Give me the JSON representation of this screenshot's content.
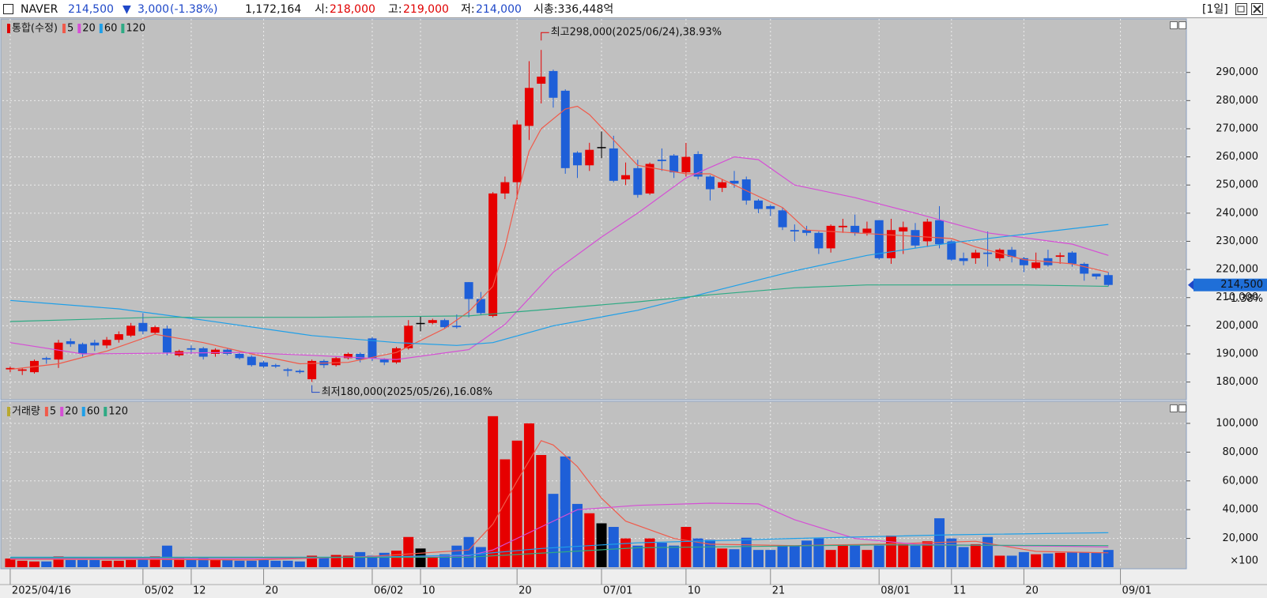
{
  "header": {
    "symbol": "NAVER",
    "price": "214,500",
    "arrow": "▼",
    "change": "3,000",
    "change_pct": "(-1.38%)",
    "volume": "1,172,164",
    "open_label": "시:",
    "open": "218,000",
    "high_label": "고:",
    "high": "219,000",
    "low_label": "저:",
    "low": "214,000",
    "market_cap": "시총:336,448억",
    "period": "[1일]"
  },
  "chart_data": [
    {
      "type": "candlestick",
      "legend_title": "통합(수정)",
      "legend_color": "#e00000",
      "up_color": "#e60000",
      "down_color": "#1e5fd8",
      "flat_color": "#000000",
      "open": [
        184500,
        184000,
        183500,
        188500,
        188000,
        194500,
        193500,
        194000,
        193000,
        195000,
        196500,
        201000,
        197500,
        199000,
        189500,
        192000,
        192000,
        190000,
        191500,
        190000,
        189000,
        187000,
        186000,
        184500,
        184000,
        181000,
        187500,
        186000,
        188500,
        190000,
        195500,
        188000,
        187000,
        192000,
        201000,
        201000,
        202000,
        200000,
        215500,
        209500,
        203500,
        247000,
        251000,
        271000,
        286000,
        290500,
        283500,
        261500,
        257000,
        263500,
        263000,
        252000,
        256000,
        247000,
        259000,
        260500,
        254500,
        261000,
        253000,
        249000,
        251500,
        252000,
        244500,
        242500,
        241000,
        234000,
        234000,
        233000,
        227500,
        235000,
        235500,
        233000,
        237500,
        224000,
        233500,
        234000,
        230000,
        237500,
        230000,
        224000,
        224000,
        226000,
        224000,
        227000,
        224000,
        220500,
        224000,
        224500,
        226000,
        222000,
        218500,
        218000
      ],
      "high": [
        185500,
        185000,
        188000,
        189000,
        195000,
        195500,
        194000,
        195000,
        196000,
        198000,
        201000,
        204500,
        200000,
        200000,
        191500,
        193000,
        192500,
        192000,
        192000,
        190500,
        189500,
        187500,
        186500,
        185000,
        184500,
        188000,
        188000,
        189000,
        190500,
        190500,
        196000,
        188500,
        192500,
        202000,
        203500,
        202500,
        202500,
        204000,
        215500,
        212000,
        247500,
        253000,
        273000,
        294000,
        298000,
        291000,
        284000,
        262000,
        265000,
        269000,
        267500,
        258000,
        259000,
        258000,
        263000,
        261000,
        265000,
        262000,
        253500,
        252000,
        255000,
        253000,
        245000,
        243000,
        242000,
        236000,
        235500,
        233500,
        236000,
        238000,
        239500,
        237000,
        237500,
        238000,
        237000,
        236500,
        238000,
        242500,
        230500,
        226000,
        227000,
        233500,
        227500,
        228000,
        224500,
        226000,
        227000,
        226000,
        226500,
        222500,
        218500,
        219000
      ],
      "low": [
        183500,
        182500,
        183000,
        186500,
        185000,
        192500,
        189000,
        191000,
        192000,
        194000,
        196000,
        197000,
        197000,
        189500,
        189000,
        190000,
        188000,
        189000,
        189500,
        188000,
        185500,
        185000,
        185000,
        182000,
        183000,
        180000,
        185000,
        185500,
        188000,
        187000,
        187500,
        186000,
        186500,
        191500,
        198000,
        200500,
        199000,
        199000,
        203000,
        204000,
        203000,
        245000,
        245000,
        266000,
        279000,
        277500,
        254000,
        252500,
        255000,
        259500,
        251000,
        250000,
        245500,
        246500,
        255000,
        252500,
        253000,
        252000,
        244500,
        247500,
        249000,
        243000,
        240000,
        239000,
        234000,
        230000,
        232000,
        225500,
        226000,
        233000,
        232000,
        232000,
        223500,
        222000,
        225500,
        227500,
        228000,
        227500,
        223000,
        221500,
        222000,
        221000,
        223000,
        222500,
        219000,
        220000,
        221000,
        222000,
        221000,
        216000,
        216500,
        214000
      ],
      "close": [
        185000,
        184500,
        187500,
        188000,
        194000,
        193500,
        190000,
        193000,
        195000,
        197000,
        200000,
        198000,
        199500,
        190500,
        191000,
        191500,
        189000,
        191500,
        190000,
        188500,
        186000,
        185500,
        185500,
        184000,
        183500,
        187500,
        186000,
        188500,
        190000,
        188000,
        188500,
        187000,
        192000,
        200000,
        201000,
        202000,
        199500,
        199500,
        209500,
        204500,
        247000,
        251000,
        271500,
        284500,
        288500,
        281000,
        256000,
        257000,
        262500,
        263500,
        251500,
        253500,
        246500,
        257500,
        258500,
        254500,
        260000,
        253000,
        248500,
        251000,
        250500,
        244500,
        241500,
        241500,
        235000,
        233500,
        233000,
        227500,
        235500,
        235500,
        233000,
        234500,
        224000,
        234000,
        235000,
        228500,
        237000,
        229000,
        223500,
        223000,
        226000,
        225500,
        227000,
        224500,
        221500,
        222500,
        221500,
        225000,
        222000,
        218500,
        217500,
        214500
      ],
      "xlim": [
        -0.65,
        97.4
      ],
      "ylim": [
        174000,
        309000
      ],
      "yticks": [
        {
          "value": 180000,
          "label": "180,000"
        },
        {
          "value": 190000,
          "label": "190,000"
        },
        {
          "value": 200000,
          "label": "200,000"
        },
        {
          "value": 210000,
          "label": "210,000"
        },
        {
          "value": 220000,
          "label": "220,000"
        },
        {
          "value": 230000,
          "label": "230,000"
        },
        {
          "value": 240000,
          "label": "240,000"
        },
        {
          "value": 250000,
          "label": "250,000"
        },
        {
          "value": 260000,
          "label": "260,000"
        },
        {
          "value": 270000,
          "label": "270,000"
        },
        {
          "value": 280000,
          "label": "280,000"
        },
        {
          "value": 290000,
          "label": "290,000"
        }
      ],
      "grid": true,
      "current": {
        "value": 214500,
        "label": "214,500"
      },
      "current_change": "-1.38%",
      "high_note": "최고298,000(2025/06/24),38.93%",
      "low_note": "최저180,000(2025/05/26),16.08%",
      "ma": [
        {
          "name": "5",
          "color": "#f05a4a",
          "x": [
            0,
            4,
            8,
            12,
            16,
            20,
            24,
            28,
            32,
            36,
            38,
            40,
            41,
            42,
            43,
            44,
            46,
            47,
            48,
            50,
            52,
            56,
            58,
            60,
            62,
            64,
            66,
            70,
            74,
            78,
            80,
            84,
            88,
            91
          ],
          "values": [
            184500,
            186500,
            191000,
            197000,
            194000,
            190000,
            186500,
            187000,
            190500,
            199000,
            205000,
            214000,
            228000,
            246000,
            262000,
            270000,
            277000,
            278000,
            275000,
            266000,
            257000,
            254000,
            254000,
            250000,
            246000,
            242000,
            234000,
            233000,
            232000,
            231000,
            228000,
            223500,
            222000,
            219000
          ]
        },
        {
          "name": "20",
          "color": "#d54fd5",
          "x": [
            0,
            6,
            19,
            25,
            32,
            38,
            41,
            45,
            49,
            52,
            56,
            60,
            62,
            65,
            70,
            75,
            81,
            88,
            91
          ],
          "values": [
            194000,
            190000,
            190500,
            189500,
            188000,
            191500,
            200500,
            219000,
            231500,
            240000,
            252500,
            260000,
            259000,
            250000,
            245500,
            240000,
            233000,
            229000,
            225000
          ]
        },
        {
          "name": "60",
          "color": "#1e9fe8",
          "x": [
            0,
            9,
            16,
            25,
            32,
            37,
            40,
            45,
            52,
            58,
            65,
            71,
            78,
            84,
            91
          ],
          "values": [
            209000,
            206000,
            202000,
            196500,
            194000,
            193000,
            194000,
            200000,
            205500,
            212000,
            219500,
            225000,
            229500,
            232500,
            236000
          ]
        },
        {
          "name": "120",
          "color": "#2eaa84",
          "x": [
            0,
            12,
            25,
            38,
            45,
            52,
            58,
            65,
            71,
            84,
            91
          ],
          "values": [
            201500,
            203000,
            203000,
            203500,
            206000,
            208500,
            211000,
            213500,
            214500,
            214500,
            214000
          ]
        }
      ]
    },
    {
      "type": "bar",
      "legend_title": "거래량",
      "legend_color": "#b8a830",
      "values": [
        6000,
        4500,
        4000,
        4000,
        7500,
        5000,
        5000,
        5000,
        4500,
        4500,
        5000,
        5500,
        7500,
        15000,
        7000,
        5000,
        7000,
        5000,
        5000,
        4500,
        4500,
        5000,
        4500,
        4500,
        4000,
        8000,
        7000,
        8500,
        8000,
        10500,
        8000,
        10000,
        11500,
        21000,
        13000,
        7000,
        9000,
        15000,
        21000,
        14000,
        105000,
        75000,
        88000,
        100000,
        78000,
        51000,
        77000,
        44000,
        37500,
        30500,
        28000,
        20000,
        15000,
        20000,
        17000,
        15000,
        28000,
        20000,
        19000,
        13000,
        12500,
        20500,
        12000,
        12000,
        15000,
        15000,
        18500,
        20000,
        12000,
        15000,
        15000,
        12000,
        15000,
        22000,
        16000,
        15000,
        18000,
        34000,
        20000,
        14000,
        16000,
        21000,
        8000,
        8000,
        10500,
        9000,
        9500,
        10000,
        10500,
        10500,
        10000,
        12000
      ],
      "xlim": [
        -0.65,
        97.4
      ],
      "ylim": [
        0,
        114800
      ],
      "yticks": [
        {
          "value": 20000,
          "label": "20,000"
        },
        {
          "value": 40000,
          "label": "40,000"
        },
        {
          "value": 60000,
          "label": "60,000"
        },
        {
          "value": 80000,
          "label": "80,000"
        },
        {
          "value": 100000,
          "label": "100,000"
        }
      ],
      "xticks": [
        {
          "value": 0,
          "label": "2025/04/16"
        },
        {
          "value": 11,
          "label": "05/02"
        },
        {
          "value": 15,
          "label": "12"
        },
        {
          "value": 21,
          "label": "20"
        },
        {
          "value": 30,
          "label": "06/02"
        },
        {
          "value": 34,
          "label": "10"
        },
        {
          "value": 42,
          "label": "20"
        },
        {
          "value": 49,
          "label": "07/01"
        },
        {
          "value": 56,
          "label": "10"
        },
        {
          "value": 63,
          "label": "21"
        },
        {
          "value": 72,
          "label": "08/01"
        },
        {
          "value": 78,
          "label": "11"
        },
        {
          "value": 84,
          "label": "20"
        },
        {
          "value": 92,
          "label": "09/01"
        }
      ],
      "unit_label": "×100",
      "grid": true,
      "ma": [
        {
          "name": "5",
          "color": "#f05a4a",
          "x": [
            0,
            10,
            20,
            30,
            38,
            40,
            42,
            44,
            45,
            47,
            49,
            51,
            55,
            58,
            65,
            72,
            80,
            85,
            91
          ],
          "values": [
            5500,
            5500,
            5000,
            7500,
            12000,
            30000,
            60000,
            88000,
            85000,
            70000,
            48000,
            32000,
            20000,
            16000,
            15000,
            16000,
            18000,
            11000,
            10000
          ]
        },
        {
          "name": "20",
          "color": "#d54fd5",
          "x": [
            0,
            20,
            38,
            40,
            44,
            47,
            52,
            58,
            62,
            65,
            70,
            75,
            82,
            88,
            91
          ],
          "values": [
            6000,
            6000,
            8000,
            12000,
            28000,
            40000,
            43000,
            44500,
            44000,
            33000,
            20000,
            16000,
            15000,
            14500,
            14000
          ]
        },
        {
          "name": "60",
          "color": "#1e9fe8",
          "x": [
            0,
            30,
            38,
            44,
            52,
            65,
            78,
            91
          ],
          "values": [
            7000,
            7000,
            8500,
            13000,
            17000,
            20000,
            22500,
            24000
          ]
        },
        {
          "name": "120",
          "color": "#2eaa84",
          "x": [
            0,
            38,
            52,
            72,
            91
          ],
          "values": [
            6500,
            7000,
            13500,
            15500,
            15000
          ]
        }
      ]
    }
  ]
}
